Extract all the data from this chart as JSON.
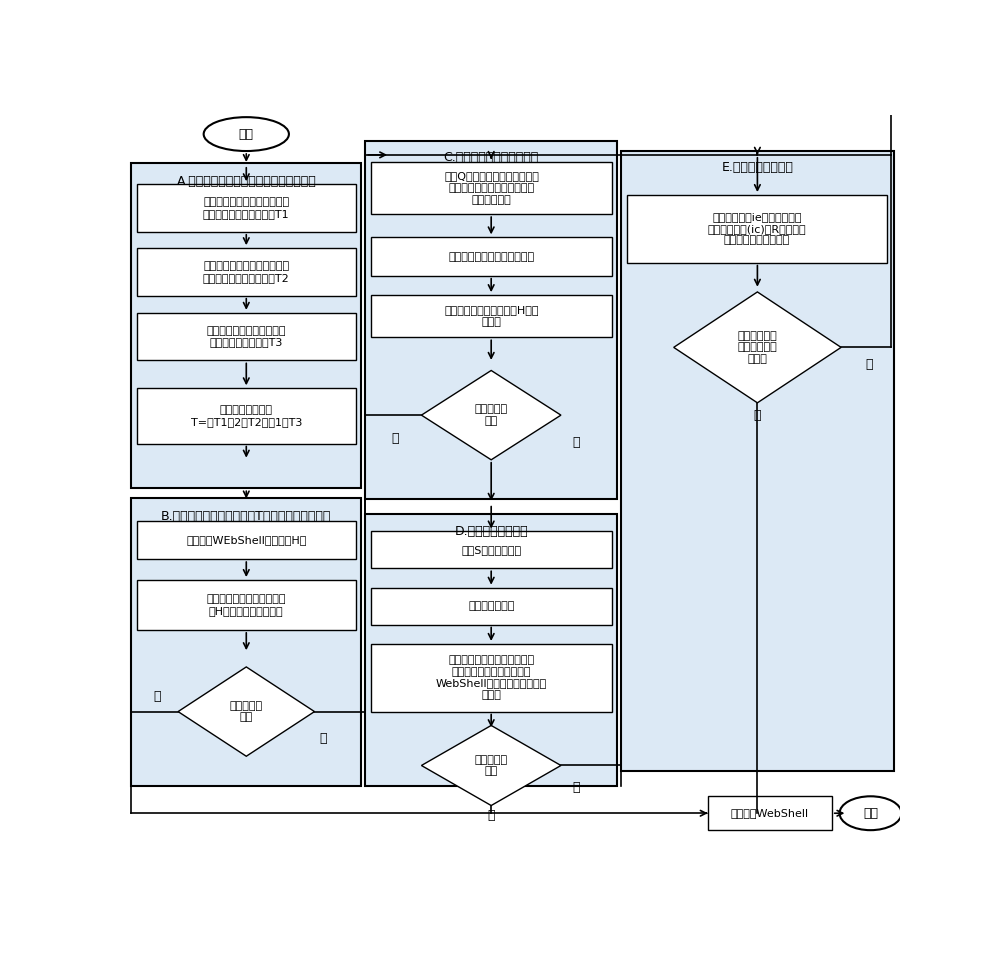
{
  "bg": "#ffffff",
  "sec_fill": "#dce9f5",
  "box_fill": "#ffffff",
  "ec": "#000000",
  "sec_ec": "#000000",
  "start": "开始",
  "end_txt": "结束",
  "final_txt": "最终输出WebShell",
  "A_title": "A.读取网站目录中文件，过滤出可疑文件",
  "A1": "根据文件的创建时间筛选出可\n疑文件，可疑文件集记为T1",
  "A2": "根据文件的相互关联筛选出可\n疑文件，可疑文件集记为T2",
  "A3": "根据文件类型筛选出可疑文\n件，可疑文件集记为T3",
  "A4": "最后，可疑文件集\nT=（T1（2）T2）（1）T3",
  "B_title": "B.对筛选出的可疑文件集（T）进行特征匹配检测",
  "B1": "建立常见WEbShell特征库（H）",
  "B2": "读物可疑文件与常见特征库\n（H）中特征码进行匹配",
  "BD": "是否匹配成\n功？",
  "C_title": "C.抄象语法树分析检测过程",
  "C1": "对于Q文件集中加密、变形的可\n疑文件进行变量回源、函数回\n源、解码操作",
  "C2": "利用抄象语法树分析可疑文件",
  "C3": "将还原的文件与特征库（H）进\n行匹配",
  "CD": "是否匹配成\n功？",
  "D_title": "D.无关代码提出过程",
  "D1": "读取S中的可疑文件",
  "D2": "剥除出无关代码",
  "D3": "对于剥除了无关代码的文件，\n再与剥除了无关代码的已知\nWebShell文件组成的特征库进\n行比对",
  "DD": "是否匹配成\n功？",
  "E_title": "E.数学公式检测过稍",
  "E1": "根据信息熵（ie）、最长单词\n以及重合指数(ic)对R中文件的\n代码混淤程度进行判断",
  "ED": "混淤程度赋值\n是否大于设定\n阈値？",
  "yes": "是",
  "no": "否"
}
